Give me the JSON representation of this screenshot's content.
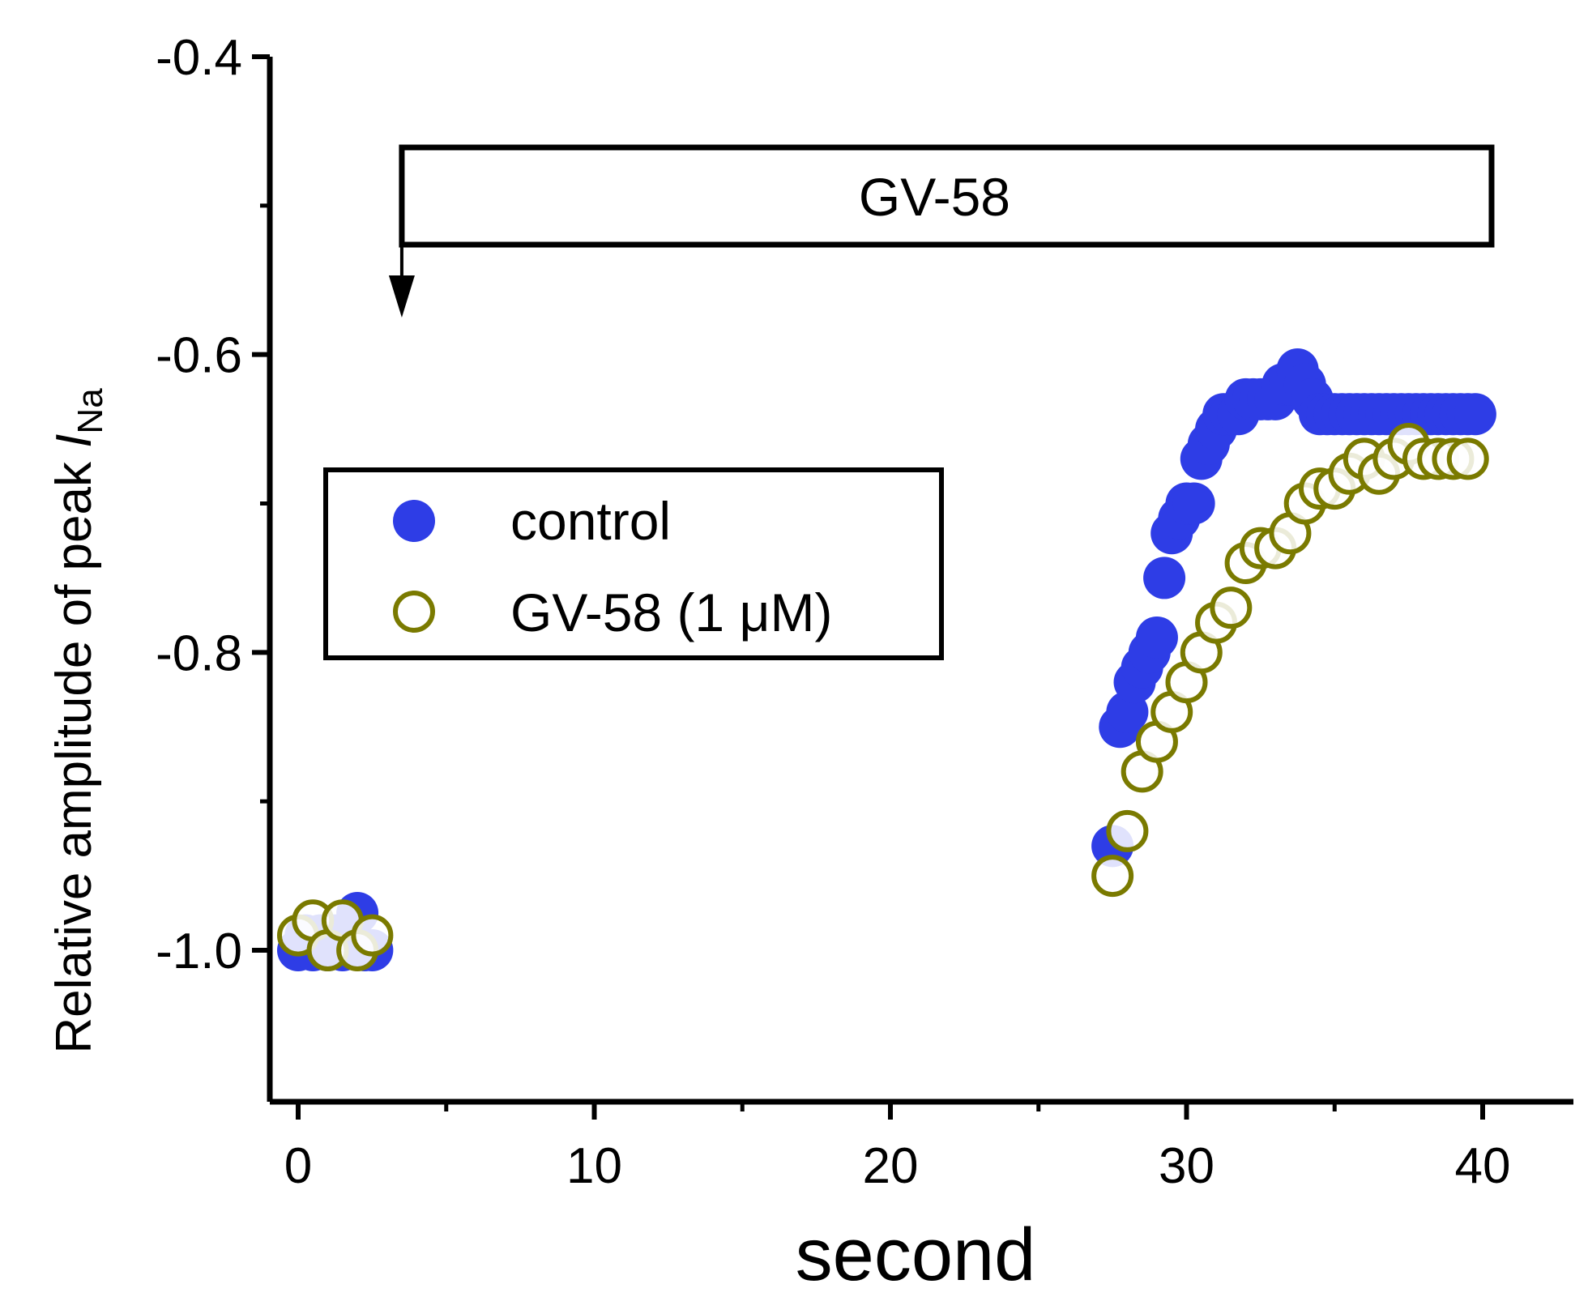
{
  "chart_data": {
    "type": "scatter",
    "title": "",
    "xlabel": "second",
    "ylabel_prefix": "Relative amplitude of peak ",
    "ylabel_italic": "I",
    "ylabel_subscript": "Na",
    "xlim": [
      -1,
      43
    ],
    "ylim": [
      -1.1,
      -0.4
    ],
    "x_ticks": [
      0,
      10,
      20,
      30,
      40
    ],
    "x_tick_labels": [
      "0",
      "10",
      "20",
      "30",
      "40"
    ],
    "x_minor_ticks": [
      5,
      15,
      25,
      35
    ],
    "y_ticks": [
      -1.0,
      -0.8,
      -0.6,
      -0.4
    ],
    "y_tick_labels": [
      "-1.0",
      "-0.8",
      "-0.6",
      "-0.4"
    ],
    "y_minor_ticks": [
      -0.9,
      -0.7,
      -0.5
    ],
    "legend": {
      "placement": "upper-left",
      "entries": [
        "control",
        "GV-58 (1 μM)"
      ]
    },
    "annotation": {
      "label": "GV-58",
      "x_start": 3.5,
      "x_end": 40.3
    },
    "series": [
      {
        "name": "control",
        "marker": "filled-circle",
        "color": "#2e3de6",
        "points": [
          [
            0,
            -1.0
          ],
          [
            0.25,
            -0.99
          ],
          [
            0.5,
            -1.0
          ],
          [
            0.75,
            -0.99
          ],
          [
            1.0,
            -1.0
          ],
          [
            1.25,
            -0.99
          ],
          [
            1.5,
            -1.0
          ],
          [
            1.75,
            -0.99
          ],
          [
            2.0,
            -0.975
          ],
          [
            2.25,
            -1.0
          ],
          [
            2.5,
            -1.0
          ],
          [
            27.5,
            -0.93
          ],
          [
            27.75,
            -0.85
          ],
          [
            28.0,
            -0.84
          ],
          [
            28.25,
            -0.82
          ],
          [
            28.5,
            -0.81
          ],
          [
            28.75,
            -0.8
          ],
          [
            29.0,
            -0.79
          ],
          [
            29.25,
            -0.75
          ],
          [
            29.5,
            -0.72
          ],
          [
            29.75,
            -0.71
          ],
          [
            30.0,
            -0.7
          ],
          [
            30.25,
            -0.7
          ],
          [
            30.5,
            -0.67
          ],
          [
            30.75,
            -0.66
          ],
          [
            31.0,
            -0.65
          ],
          [
            31.25,
            -0.64
          ],
          [
            31.5,
            -0.64
          ],
          [
            31.75,
            -0.64
          ],
          [
            32.0,
            -0.63
          ],
          [
            32.25,
            -0.63
          ],
          [
            32.5,
            -0.63
          ],
          [
            32.75,
            -0.63
          ],
          [
            33.0,
            -0.63
          ],
          [
            33.25,
            -0.62
          ],
          [
            33.5,
            -0.62
          ],
          [
            33.75,
            -0.61
          ],
          [
            34.0,
            -0.62
          ],
          [
            34.25,
            -0.63
          ],
          [
            34.5,
            -0.64
          ],
          [
            34.75,
            -0.64
          ],
          [
            35.0,
            -0.64
          ],
          [
            35.25,
            -0.64
          ],
          [
            35.5,
            -0.64
          ],
          [
            35.75,
            -0.64
          ],
          [
            36.0,
            -0.64
          ],
          [
            36.25,
            -0.64
          ],
          [
            36.5,
            -0.64
          ],
          [
            36.75,
            -0.64
          ],
          [
            37.0,
            -0.64
          ],
          [
            37.25,
            -0.64
          ],
          [
            37.5,
            -0.64
          ],
          [
            37.75,
            -0.64
          ],
          [
            38.0,
            -0.64
          ],
          [
            38.25,
            -0.64
          ],
          [
            38.5,
            -0.64
          ],
          [
            38.75,
            -0.64
          ],
          [
            39.0,
            -0.64
          ],
          [
            39.25,
            -0.64
          ],
          [
            39.5,
            -0.64
          ],
          [
            39.75,
            -0.64
          ]
        ]
      },
      {
        "name": "GV-58 (1 μM)",
        "marker": "open-circle",
        "color": "#7a7a00",
        "points": [
          [
            0,
            -0.99
          ],
          [
            0.5,
            -0.98
          ],
          [
            1.0,
            -1.0
          ],
          [
            1.5,
            -0.98
          ],
          [
            2.0,
            -1.0
          ],
          [
            2.5,
            -0.99
          ],
          [
            27.5,
            -0.95
          ],
          [
            28.0,
            -0.92
          ],
          [
            28.5,
            -0.88
          ],
          [
            29.0,
            -0.86
          ],
          [
            29.5,
            -0.84
          ],
          [
            30.0,
            -0.82
          ],
          [
            30.5,
            -0.8
          ],
          [
            31.0,
            -0.78
          ],
          [
            31.5,
            -0.77
          ],
          [
            32.0,
            -0.74
          ],
          [
            32.5,
            -0.73
          ],
          [
            33.0,
            -0.73
          ],
          [
            33.5,
            -0.72
          ],
          [
            34.0,
            -0.7
          ],
          [
            34.5,
            -0.69
          ],
          [
            35.0,
            -0.69
          ],
          [
            35.5,
            -0.68
          ],
          [
            36.0,
            -0.67
          ],
          [
            36.5,
            -0.68
          ],
          [
            37.0,
            -0.67
          ],
          [
            37.5,
            -0.66
          ],
          [
            38.0,
            -0.67
          ],
          [
            38.5,
            -0.67
          ],
          [
            39.0,
            -0.67
          ],
          [
            39.5,
            -0.67
          ]
        ]
      }
    ]
  }
}
